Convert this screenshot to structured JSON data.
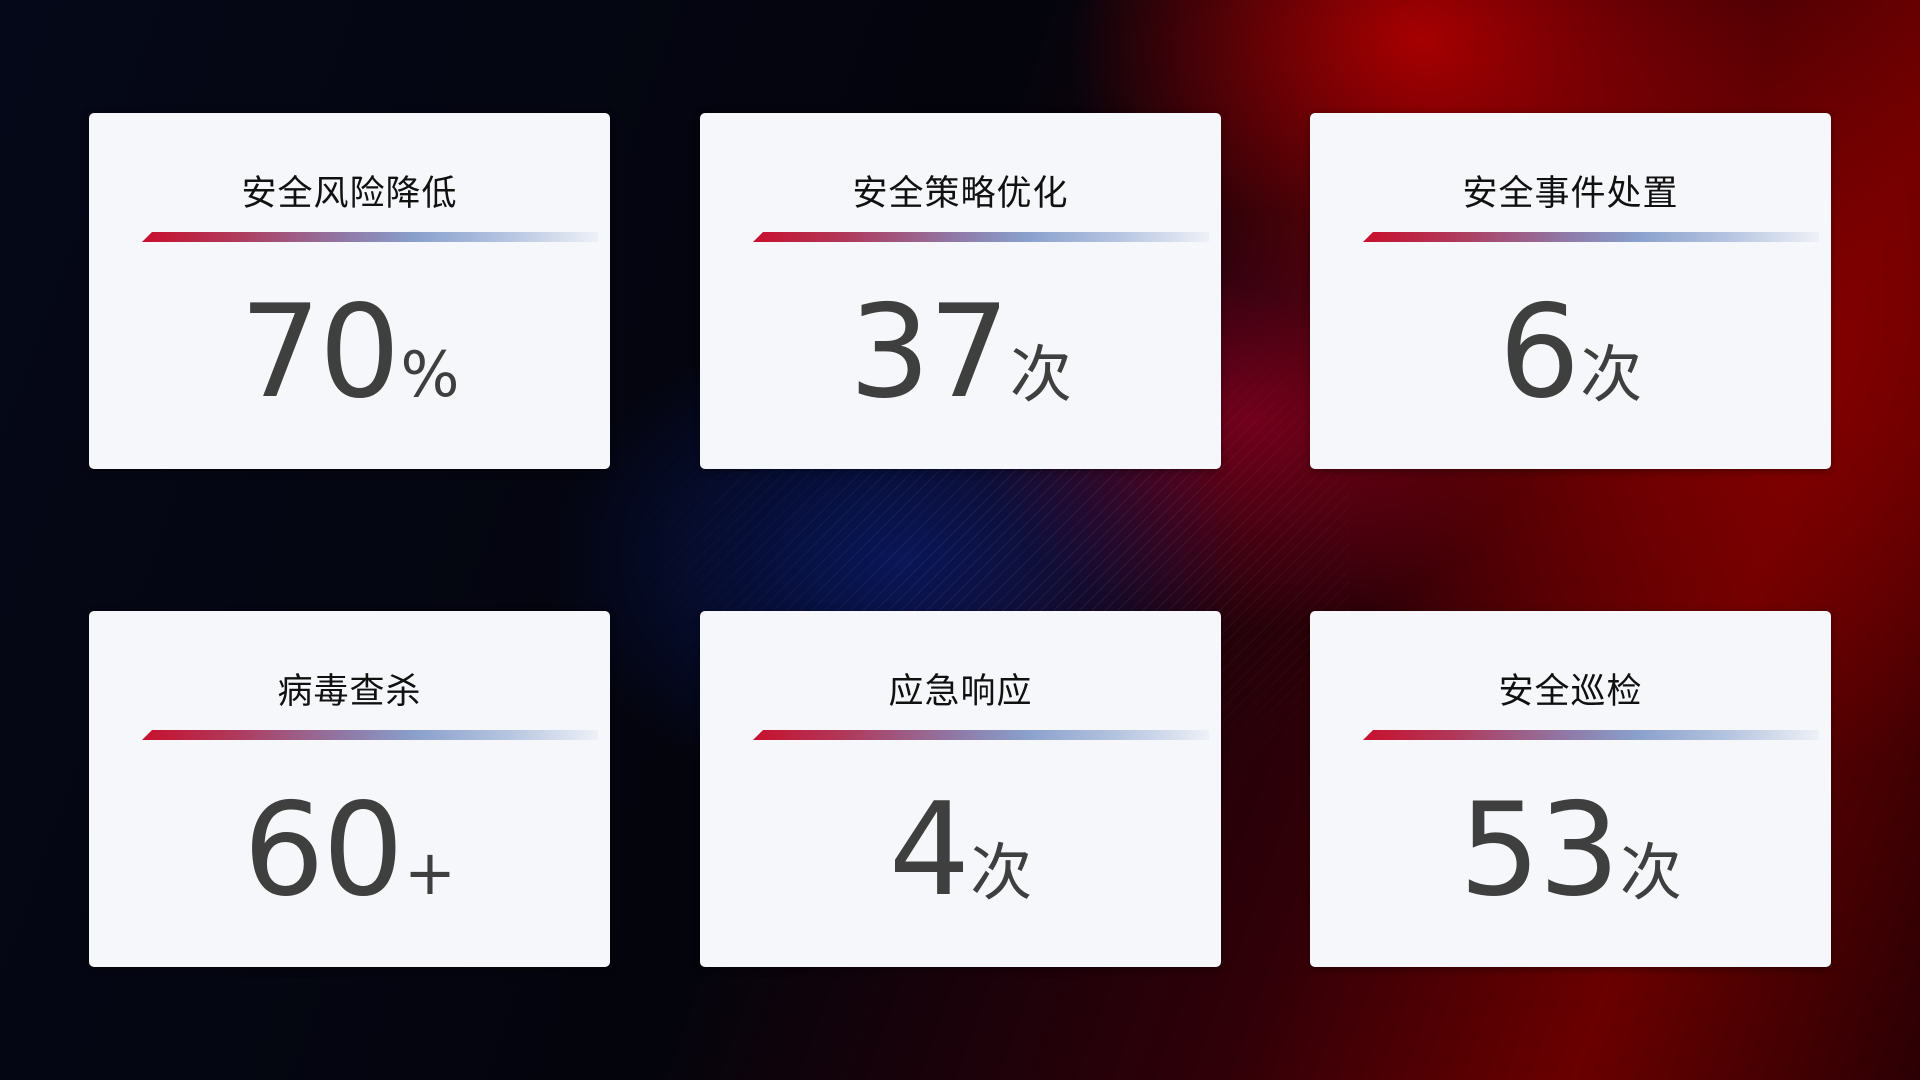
{
  "cards": [
    {
      "title": "安全风险降低",
      "value": "70",
      "unit": "%"
    },
    {
      "title": "安全策略优化",
      "value": "37",
      "unit": "次"
    },
    {
      "title": "安全事件处置",
      "value": "6",
      "unit": "次"
    },
    {
      "title": "病毒查杀",
      "value": "60",
      "unit": "+"
    },
    {
      "title": "应急响应",
      "value": "4",
      "unit": "次"
    },
    {
      "title": "安全巡检",
      "value": "53",
      "unit": "次"
    }
  ],
  "colors": {
    "accent_red": "#c8102e",
    "accent_blue": "#8aa0cc",
    "card_bg": "#f6f7fb",
    "value_text": "#3f3f3f"
  }
}
